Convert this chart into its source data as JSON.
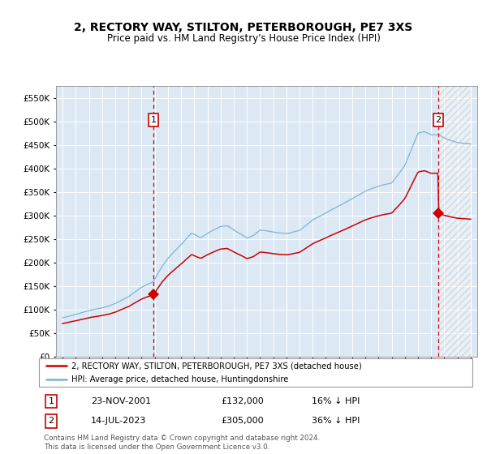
{
  "title": "2, RECTORY WAY, STILTON, PETERBOROUGH, PE7 3XS",
  "subtitle": "Price paid vs. HM Land Registry's House Price Index (HPI)",
  "title_fontsize": 10,
  "subtitle_fontsize": 8.5,
  "bg_color": "#dce9f5",
  "sale1_year": 2001.9,
  "sale1_price": 132000,
  "sale2_year": 2023.54,
  "sale2_price": 305000,
  "yticks": [
    0,
    50000,
    100000,
    150000,
    200000,
    250000,
    300000,
    350000,
    400000,
    450000,
    500000,
    550000
  ],
  "ylim": [
    0,
    575000
  ],
  "xlim": [
    1994.5,
    2026.5
  ],
  "legend_line1": "2, RECTORY WAY, STILTON, PETERBOROUGH, PE7 3XS (detached house)",
  "legend_line2": "HPI: Average price, detached house, Huntingdonshire",
  "table_row1": [
    "1",
    "23-NOV-2001",
    "£132,000",
    "16% ↓ HPI"
  ],
  "table_row2": [
    "2",
    "14-JUL-2023",
    "£305,000",
    "36% ↓ HPI"
  ],
  "footnote": "Contains HM Land Registry data © Crown copyright and database right 2024.\nThis data is licensed under the Open Government Licence v3.0.",
  "red_color": "#cc0000",
  "blue_color": "#7fb3d3"
}
